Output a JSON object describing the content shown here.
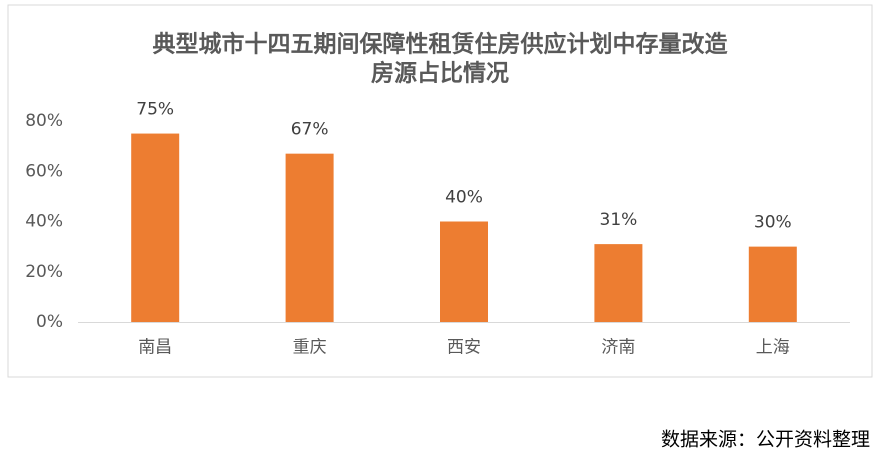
{
  "chart_data": {
    "type": "bar",
    "title": [
      "典型城市十四五期间保障性租赁住房供应计划中存量改造",
      "房源占比情况"
    ],
    "categories": [
      "南昌",
      "重庆",
      "西安",
      "济南",
      "上海"
    ],
    "values": [
      75,
      67,
      40,
      31,
      30
    ],
    "value_labels": [
      "75%",
      "67%",
      "40%",
      "31%",
      "30%"
    ],
    "color": "#ed7d31",
    "ylim": [
      0,
      80
    ],
    "yticks": [
      {
        "value": 0,
        "label": "0%"
      },
      {
        "value": 20,
        "label": "20%"
      },
      {
        "value": 40,
        "label": "40%"
      },
      {
        "value": 60,
        "label": "60%"
      },
      {
        "value": 80,
        "label": "80%"
      }
    ],
    "grid": false
  },
  "source": "数据来源：公开资料整理"
}
